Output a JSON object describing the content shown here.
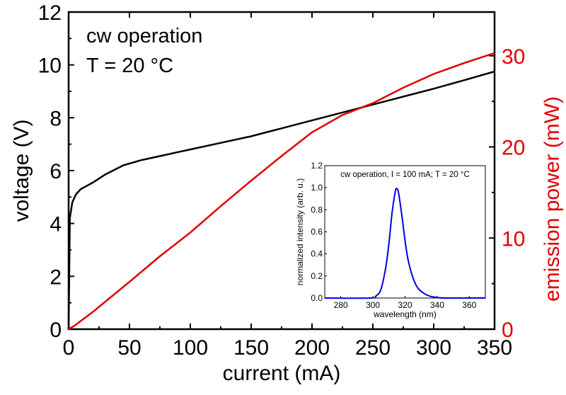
{
  "chart_data": [
    {
      "type": "line",
      "xlabel": "current (mA)",
      "ylabel": "voltage (V)",
      "y2label": "emission power (mW)",
      "xlim": [
        0,
        350
      ],
      "ylim": [
        0,
        12
      ],
      "y2lim": [
        0,
        34.8
      ],
      "xticks": [
        0,
        50,
        100,
        150,
        200,
        250,
        300,
        350
      ],
      "yticks": [
        0,
        2,
        4,
        6,
        8,
        10,
        12
      ],
      "y2ticks": [
        0,
        10,
        20,
        30
      ],
      "grid": false,
      "annotations": [
        "cw operation",
        "T = 20 °C"
      ],
      "colors": {
        "voltage": "#000000",
        "power": "#e00000",
        "right_axis": "#e00000"
      },
      "series": [
        {
          "axis": "left",
          "x": [
            0,
            1,
            3,
            6,
            10,
            20,
            30,
            45,
            60,
            80,
            100,
            125,
            150,
            175,
            200,
            225,
            250,
            275,
            300,
            325,
            350
          ],
          "values": [
            0,
            4.2,
            4.8,
            5.1,
            5.3,
            5.55,
            5.85,
            6.2,
            6.4,
            6.6,
            6.8,
            7.05,
            7.3,
            7.6,
            7.9,
            8.2,
            8.5,
            8.8,
            9.1,
            9.42,
            9.75
          ]
        },
        {
          "axis": "right",
          "x": [
            0,
            5,
            10,
            20,
            50,
            75,
            100,
            125,
            150,
            175,
            200,
            225,
            250,
            275,
            300,
            325,
            350
          ],
          "values": [
            0,
            0.4,
            0.9,
            1.9,
            5.2,
            8.0,
            10.6,
            13.5,
            16.3,
            19.0,
            21.6,
            23.5,
            24.8,
            26.5,
            28.0,
            29.2,
            30.3
          ]
        }
      ]
    },
    {
      "type": "line",
      "title": "cw operation, I = 100 mA; T = 20 °C",
      "xlabel": "wavelength (nm)",
      "ylabel": "normalized intensity (arb. u.)",
      "xlim": [
        270,
        370
      ],
      "ylim": [
        0,
        1.2
      ],
      "xticks": [
        280,
        300,
        320,
        340,
        360
      ],
      "yticks": [
        "0.0",
        "0.2",
        "0.4",
        "0.6",
        "0.8",
        "1.0",
        "1.2"
      ],
      "grid": false,
      "colors": {
        "spectrum": "#0000e0"
      },
      "series": [
        {
          "x": [
            270,
            298,
            302,
            305,
            308,
            310,
            312,
            314,
            315,
            316,
            318,
            320,
            322,
            325,
            328,
            332,
            336,
            340,
            345,
            370
          ],
          "values": [
            0,
            0,
            0.02,
            0.08,
            0.28,
            0.5,
            0.78,
            0.97,
            0.99,
            0.95,
            0.75,
            0.52,
            0.34,
            0.18,
            0.09,
            0.04,
            0.015,
            0.005,
            0,
            0
          ]
        }
      ]
    }
  ]
}
